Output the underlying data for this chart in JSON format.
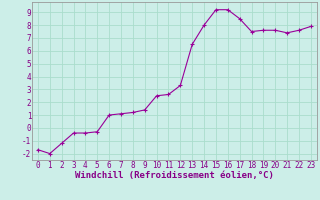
{
  "x": [
    0,
    1,
    2,
    3,
    4,
    5,
    6,
    7,
    8,
    9,
    10,
    11,
    12,
    13,
    14,
    15,
    16,
    17,
    18,
    19,
    20,
    21,
    22,
    23
  ],
  "y": [
    -1.7,
    -2.0,
    -1.2,
    -0.4,
    -0.4,
    -0.3,
    1.0,
    1.1,
    1.2,
    1.4,
    2.5,
    2.6,
    3.3,
    6.5,
    8.0,
    9.2,
    9.2,
    8.5,
    7.5,
    7.6,
    7.6,
    7.4,
    7.6,
    7.9
  ],
  "line_color": "#990099",
  "marker": "+",
  "marker_size": 3,
  "bg_color": "#cceee8",
  "grid_color": "#aaddcc",
  "xlabel": "Windchill (Refroidissement éolien,°C)",
  "xlim": [
    -0.5,
    23.5
  ],
  "ylim": [
    -2.5,
    9.8
  ],
  "xtick_labels": [
    "0",
    "1",
    "2",
    "3",
    "4",
    "5",
    "6",
    "7",
    "8",
    "9",
    "10",
    "11",
    "12",
    "13",
    "14",
    "15",
    "16",
    "17",
    "18",
    "19",
    "20",
    "21",
    "22",
    "23"
  ],
  "ytick_labels": [
    "-2",
    "-1",
    "0",
    "1",
    "2",
    "3",
    "4",
    "5",
    "6",
    "7",
    "8",
    "9"
  ],
  "tick_fontsize": 5.5,
  "xlabel_fontsize": 6.5,
  "label_color": "#880088"
}
